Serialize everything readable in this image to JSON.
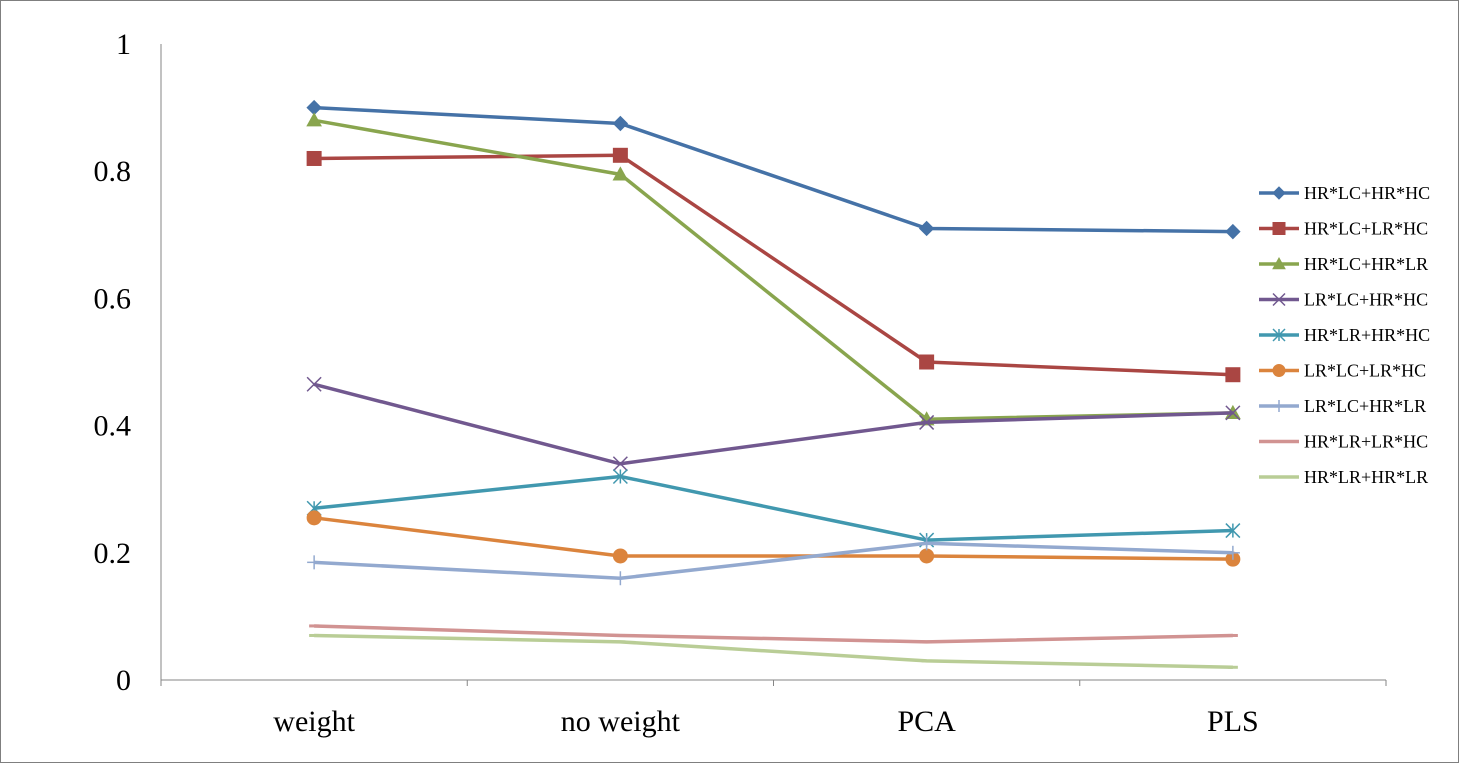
{
  "chart_data": {
    "type": "line",
    "categories": [
      "weight",
      "no weight",
      "PCA",
      "PLS"
    ],
    "ylim": [
      0,
      1
    ],
    "yticks": [
      0,
      0.2,
      0.4,
      0.6,
      0.8,
      1
    ],
    "ytick_labels": [
      "0",
      "0.2",
      "0.4",
      "0.6",
      "0.8",
      "1"
    ],
    "grid": false,
    "legend_position": "right",
    "series": [
      {
        "name": "HR*LC+HR*HC",
        "values": [
          0.9,
          0.875,
          0.71,
          0.705
        ],
        "color": "#4572A7",
        "marker": "diamond"
      },
      {
        "name": "HR*LC+LR*HC",
        "values": [
          0.82,
          0.825,
          0.5,
          0.48
        ],
        "color": "#AA4643",
        "marker": "square"
      },
      {
        "name": "HR*LC+HR*LR",
        "values": [
          0.88,
          0.795,
          0.41,
          0.42
        ],
        "color": "#89A54E",
        "marker": "triangle"
      },
      {
        "name": "LR*LC+HR*HC",
        "values": [
          0.465,
          0.34,
          0.405,
          0.42
        ],
        "color": "#71588F",
        "marker": "x"
      },
      {
        "name": "HR*LR+HR*HC",
        "values": [
          0.27,
          0.32,
          0.22,
          0.235
        ],
        "color": "#4198AF",
        "marker": "asterisk"
      },
      {
        "name": "LR*LC+LR*HC",
        "values": [
          0.255,
          0.195,
          0.195,
          0.19
        ],
        "color": "#DB843D",
        "marker": "circle"
      },
      {
        "name": "LR*LC+HR*LR",
        "values": [
          0.185,
          0.16,
          0.215,
          0.2
        ],
        "color": "#93A9CF",
        "marker": "plus"
      },
      {
        "name": "HR*LR+LR*HC",
        "values": [
          0.085,
          0.07,
          0.06,
          0.07
        ],
        "color": "#D19392",
        "marker": "dash"
      },
      {
        "name": "HR*LR+HR*LR",
        "values": [
          0.07,
          0.06,
          0.03,
          0.02
        ],
        "color": "#B9CD96",
        "marker": "dash"
      }
    ]
  }
}
